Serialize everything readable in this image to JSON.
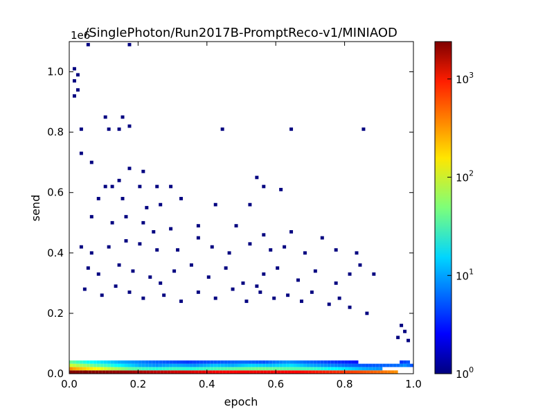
{
  "chart_data": {
    "type": "heatmap",
    "title": "/SinglePhoton/Run2017B-PromptReco-v1/MINIAOD",
    "xlabel": "epoch",
    "ylabel": "send",
    "xlim": [
      0.0,
      1.0
    ],
    "ylim": [
      0.0,
      1.1
    ],
    "y_multiplier_label": "1e6",
    "x_ticks": [
      "0.0",
      "0.2",
      "0.4",
      "0.6",
      "0.8",
      "1.0"
    ],
    "y_ticks": [
      "0.0",
      "0.2",
      "0.4",
      "0.6",
      "0.8",
      "1.0"
    ],
    "colorbar": {
      "scale": "log",
      "range": [
        1,
        2400
      ],
      "colormap": "jet",
      "ticks": [
        {
          "base": "10",
          "exp": "0",
          "value": 1
        },
        {
          "base": "10",
          "exp": "1",
          "value": 10
        },
        {
          "base": "10",
          "exp": "2",
          "value": 100
        },
        {
          "base": "10",
          "exp": "3",
          "value": 1000
        }
      ]
    },
    "bins": {
      "nx": 100,
      "ny": 100
    },
    "cells": [
      [
        0.005,
        0.0055,
        2400
      ],
      [
        0.05,
        0.0055,
        2400
      ],
      [
        0.15,
        0.0055,
        2000
      ],
      [
        0.25,
        0.0055,
        1500
      ],
      [
        0.35,
        0.0055,
        1200
      ],
      [
        0.45,
        0.0055,
        900
      ],
      [
        0.55,
        0.0055,
        1000
      ],
      [
        0.65,
        0.0055,
        900
      ],
      [
        0.75,
        0.0055,
        700
      ],
      [
        0.85,
        0.0055,
        500
      ],
      [
        0.95,
        0.0055,
        300
      ],
      [
        0.005,
        0.0165,
        300
      ],
      [
        0.015,
        0.0165,
        250
      ],
      [
        0.025,
        0.0165,
        220
      ],
      [
        0.035,
        0.0165,
        200
      ],
      [
        0.055,
        0.0165,
        160
      ],
      [
        0.085,
        0.0165,
        120
      ],
      [
        0.115,
        0.0165,
        80
      ],
      [
        0.145,
        0.0165,
        60
      ],
      [
        0.175,
        0.0165,
        40
      ],
      [
        0.215,
        0.0165,
        30
      ],
      [
        0.255,
        0.0165,
        25
      ],
      [
        0.305,
        0.0165,
        30
      ],
      [
        0.355,
        0.0165,
        25
      ],
      [
        0.405,
        0.0165,
        30
      ],
      [
        0.455,
        0.0165,
        35
      ],
      [
        0.505,
        0.0165,
        40
      ],
      [
        0.555,
        0.0165,
        45
      ],
      [
        0.605,
        0.0165,
        40
      ],
      [
        0.655,
        0.0165,
        35
      ],
      [
        0.705,
        0.0165,
        30
      ],
      [
        0.755,
        0.0165,
        20
      ],
      [
        0.805,
        0.0165,
        15
      ],
      [
        0.855,
        0.0165,
        10
      ],
      [
        0.905,
        0.0165,
        8
      ],
      [
        0.005,
        0.0275,
        90
      ],
      [
        0.015,
        0.0275,
        80
      ],
      [
        0.025,
        0.0275,
        70
      ],
      [
        0.045,
        0.0275,
        60
      ],
      [
        0.075,
        0.0275,
        40
      ],
      [
        0.105,
        0.0275,
        30
      ],
      [
        0.135,
        0.0275,
        20
      ],
      [
        0.165,
        0.0275,
        15
      ],
      [
        0.205,
        0.0275,
        10
      ],
      [
        0.255,
        0.0275,
        8
      ],
      [
        0.305,
        0.0275,
        10
      ],
      [
        0.365,
        0.0275,
        8
      ],
      [
        0.425,
        0.0275,
        12
      ],
      [
        0.475,
        0.0275,
        10
      ],
      [
        0.525,
        0.0275,
        14
      ],
      [
        0.585,
        0.0275,
        12
      ],
      [
        0.645,
        0.0275,
        15
      ],
      [
        0.695,
        0.0275,
        10
      ],
      [
        0.745,
        0.0275,
        8
      ],
      [
        0.805,
        0.0275,
        6
      ],
      [
        0.865,
        0.0275,
        5
      ],
      [
        0.955,
        0.0275,
        6
      ],
      [
        0.975,
        0.0275,
        8
      ],
      [
        0.995,
        0.0275,
        5
      ],
      [
        0.005,
        0.0385,
        40
      ],
      [
        0.025,
        0.0385,
        30
      ],
      [
        0.055,
        0.0385,
        20
      ],
      [
        0.095,
        0.0385,
        15
      ],
      [
        0.145,
        0.0385,
        10
      ],
      [
        0.185,
        0.0385,
        8
      ],
      [
        0.235,
        0.0385,
        6
      ],
      [
        0.285,
        0.0385,
        5
      ],
      [
        0.345,
        0.0385,
        4
      ],
      [
        0.415,
        0.0385,
        5
      ],
      [
        0.505,
        0.0385,
        6
      ],
      [
        0.565,
        0.0385,
        5
      ],
      [
        0.635,
        0.0385,
        8
      ],
      [
        0.685,
        0.0385,
        6
      ],
      [
        0.765,
        0.0385,
        4
      ],
      [
        0.835,
        0.0385,
        3
      ],
      [
        0.965,
        0.0385,
        4
      ],
      [
        0.985,
        0.0385,
        5
      ]
    ],
    "sparse_points": [
      [
        0.015,
        1.01
      ],
      [
        0.025,
        0.99
      ],
      [
        0.015,
        0.97
      ],
      [
        0.015,
        0.92
      ],
      [
        0.025,
        0.94
      ],
      [
        0.055,
        1.09
      ],
      [
        0.175,
        1.09
      ],
      [
        0.035,
        0.81
      ],
      [
        0.105,
        0.85
      ],
      [
        0.155,
        0.85
      ],
      [
        0.115,
        0.81
      ],
      [
        0.145,
        0.81
      ],
      [
        0.175,
        0.82
      ],
      [
        0.445,
        0.81
      ],
      [
        0.645,
        0.81
      ],
      [
        0.855,
        0.81
      ],
      [
        0.035,
        0.73
      ],
      [
        0.065,
        0.7
      ],
      [
        0.175,
        0.68
      ],
      [
        0.215,
        0.67
      ],
      [
        0.105,
        0.62
      ],
      [
        0.125,
        0.62
      ],
      [
        0.145,
        0.64
      ],
      [
        0.255,
        0.62
      ],
      [
        0.295,
        0.62
      ],
      [
        0.545,
        0.65
      ],
      [
        0.565,
        0.62
      ],
      [
        0.615,
        0.61
      ],
      [
        0.205,
        0.62
      ],
      [
        0.085,
        0.58
      ],
      [
        0.155,
        0.58
      ],
      [
        0.225,
        0.55
      ],
      [
        0.265,
        0.56
      ],
      [
        0.325,
        0.58
      ],
      [
        0.425,
        0.56
      ],
      [
        0.525,
        0.56
      ],
      [
        0.065,
        0.52
      ],
      [
        0.125,
        0.5
      ],
      [
        0.165,
        0.52
      ],
      [
        0.215,
        0.5
      ],
      [
        0.245,
        0.47
      ],
      [
        0.295,
        0.48
      ],
      [
        0.375,
        0.49
      ],
      [
        0.485,
        0.49
      ],
      [
        0.375,
        0.45
      ],
      [
        0.565,
        0.46
      ],
      [
        0.645,
        0.47
      ],
      [
        0.735,
        0.45
      ],
      [
        0.035,
        0.42
      ],
      [
        0.065,
        0.4
      ],
      [
        0.115,
        0.42
      ],
      [
        0.165,
        0.44
      ],
      [
        0.205,
        0.43
      ],
      [
        0.255,
        0.41
      ],
      [
        0.315,
        0.41
      ],
      [
        0.415,
        0.42
      ],
      [
        0.465,
        0.4
      ],
      [
        0.525,
        0.43
      ],
      [
        0.585,
        0.41
      ],
      [
        0.625,
        0.42
      ],
      [
        0.685,
        0.4
      ],
      [
        0.775,
        0.41
      ],
      [
        0.835,
        0.4
      ],
      [
        0.845,
        0.36
      ],
      [
        0.885,
        0.33
      ],
      [
        0.545,
        0.29
      ],
      [
        0.055,
        0.35
      ],
      [
        0.085,
        0.33
      ],
      [
        0.145,
        0.36
      ],
      [
        0.185,
        0.34
      ],
      [
        0.235,
        0.32
      ],
      [
        0.265,
        0.3
      ],
      [
        0.305,
        0.34
      ],
      [
        0.355,
        0.36
      ],
      [
        0.405,
        0.32
      ],
      [
        0.455,
        0.35
      ],
      [
        0.505,
        0.3
      ],
      [
        0.565,
        0.33
      ],
      [
        0.605,
        0.35
      ],
      [
        0.665,
        0.31
      ],
      [
        0.715,
        0.34
      ],
      [
        0.775,
        0.3
      ],
      [
        0.815,
        0.33
      ],
      [
        0.045,
        0.28
      ],
      [
        0.095,
        0.26
      ],
      [
        0.135,
        0.29
      ],
      [
        0.175,
        0.27
      ],
      [
        0.215,
        0.25
      ],
      [
        0.275,
        0.26
      ],
      [
        0.325,
        0.24
      ],
      [
        0.375,
        0.27
      ],
      [
        0.425,
        0.25
      ],
      [
        0.475,
        0.28
      ],
      [
        0.515,
        0.24
      ],
      [
        0.555,
        0.27
      ],
      [
        0.595,
        0.25
      ],
      [
        0.635,
        0.26
      ],
      [
        0.675,
        0.24
      ],
      [
        0.705,
        0.27
      ],
      [
        0.755,
        0.23
      ],
      [
        0.785,
        0.25
      ],
      [
        0.815,
        0.22
      ],
      [
        0.865,
        0.2
      ],
      [
        0.965,
        0.16
      ],
      [
        0.975,
        0.14
      ],
      [
        0.955,
        0.12
      ],
      [
        0.985,
        0.11
      ]
    ]
  }
}
